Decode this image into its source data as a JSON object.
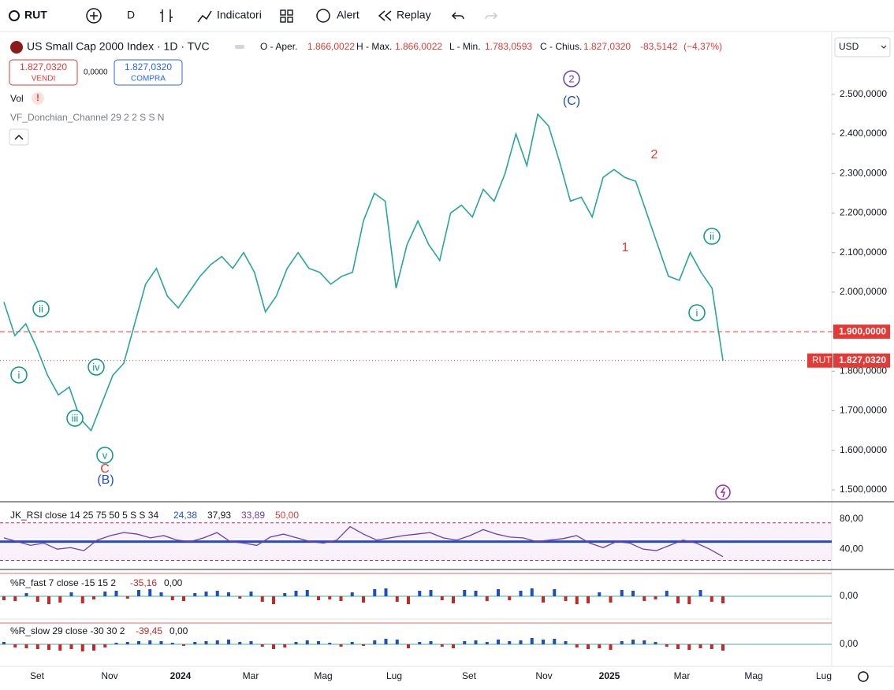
{
  "toolbar": {
    "symbol": "RUT",
    "interval": "D",
    "indicators": "Indicatori",
    "alert": "Alert",
    "replay": "Replay"
  },
  "header": {
    "title": "US Small Cap 2000 Index · 1D · TVC",
    "o_label": "O - Aper.",
    "o": "1.866,0022",
    "h_label": "H - Max.",
    "h": "1.866,0022",
    "l_label": "L - Min.",
    "l": "1.783,0593",
    "c_label": "C - Chius.",
    "c": "1.827,0320",
    "change": "-83,5142",
    "change_pct": "(−4,37%)",
    "sell_price": "1.827,0320",
    "sell": "VENDI",
    "spread": "0,0000",
    "buy_price": "1.827,0320",
    "buy": "COMPRA",
    "vol": "Vol",
    "donchian": "VF_Donchian_Channel 29 2 2 S S N",
    "currency": "USD"
  },
  "chart_data": {
    "type": "line",
    "color": "#26a69a",
    "values": [
      1975,
      1890,
      1920,
      1860,
      1790,
      1740,
      1760,
      1680,
      1650,
      1720,
      1790,
      1820,
      1920,
      2020,
      2060,
      1990,
      1960,
      2000,
      2040,
      2070,
      2090,
      2060,
      2100,
      2050,
      1950,
      1990,
      2060,
      2100,
      2060,
      2050,
      2020,
      2040,
      2050,
      2180,
      2250,
      2230,
      2010,
      2120,
      2180,
      2120,
      2080,
      2200,
      2220,
      2190,
      2260,
      2230,
      2300,
      2400,
      2320,
      2450,
      2420,
      2330,
      2230,
      2240,
      2190,
      2290,
      2310,
      2290,
      2280,
      2200,
      2120,
      2040,
      2030,
      2100,
      2050,
      2010,
      1827
    ],
    "ylim": [
      1472,
      2659
    ],
    "yticks": [
      {
        "value": 2500,
        "label": "2.500,0000"
      },
      {
        "value": 2400,
        "label": "2.400,0000"
      },
      {
        "value": 2300,
        "label": "2.300,0000"
      },
      {
        "value": 2200,
        "label": "2.200,0000"
      },
      {
        "value": 2100,
        "label": "2.100,0000"
      },
      {
        "value": 2000,
        "label": "2.000,0000"
      },
      {
        "value": 1900,
        "label": "1.900,0000"
      },
      {
        "value": 1800,
        "label": "1.800,0000"
      },
      {
        "value": 1700,
        "label": "1.700,0000"
      },
      {
        "value": 1600,
        "label": "1.600,0000"
      },
      {
        "value": 1500,
        "label": "1.500,0000"
      }
    ],
    "grid": false,
    "levels": [
      {
        "value": 1900,
        "label": "1.900,0000",
        "color": "#e53935"
      }
    ],
    "last": {
      "name": "RUT",
      "value": 1827.032,
      "label": "1.827,0320",
      "color": "#e53935"
    },
    "x_labels": [
      "Set",
      "Nov",
      "2024",
      "Mar",
      "Mag",
      "Lug",
      "Set",
      "Nov",
      "2025",
      "Mar",
      "Mag",
      "Lug"
    ],
    "waves": [
      {
        "label": "2",
        "color": "#6a3fb5",
        "circle": true
      },
      {
        "label": "(C)",
        "color": "#1e4fc2"
      },
      {
        "label": "ii",
        "color": "#089981",
        "circle": true
      },
      {
        "label": "i",
        "color": "#089981",
        "circle": true
      },
      {
        "label": "iii",
        "color": "#089981",
        "circle": true
      },
      {
        "label": "iv",
        "color": "#089981",
        "circle": true
      },
      {
        "label": "v",
        "color": "#089981",
        "circle": true
      },
      {
        "label": "C",
        "color": "#e53935"
      },
      {
        "label": "(B)",
        "color": "#1e4fc2"
      },
      {
        "label": "1",
        "color": "#e53935"
      },
      {
        "label": "2",
        "color": "#e53935"
      },
      {
        "label": "ii",
        "color": "#089981",
        "circle": true
      },
      {
        "label": "i",
        "color": "#089981",
        "circle": true
      }
    ]
  },
  "rsi": {
    "title": "JK_RSI close 14 25 75 50 5 S S 34",
    "readings": [
      "24,38",
      "37,93",
      "33,89",
      "50,00"
    ],
    "color": "#6a3fb5",
    "values": [
      55,
      50,
      45,
      48,
      40,
      42,
      38,
      52,
      58,
      62,
      60,
      55,
      58,
      52,
      50,
      55,
      62,
      50,
      48,
      45,
      56,
      60,
      55,
      50,
      48,
      52,
      70,
      60,
      52,
      55,
      58,
      60,
      62,
      55,
      52,
      58,
      66,
      60,
      56,
      55,
      50,
      52,
      54,
      58,
      48,
      42,
      50,
      48,
      40,
      38,
      45,
      52,
      48,
      40,
      30
    ],
    "levels": [
      75,
      50,
      25
    ],
    "ylim": [
      14,
      103
    ],
    "yticks": [
      {
        "value": 80,
        "label": "80,00"
      },
      {
        "value": 40,
        "label": "40,00"
      }
    ]
  },
  "fast": {
    "title": "%R_fast 7 close -15 15 2",
    "readings": [
      "-35,16",
      "0,00"
    ],
    "values": [
      -10,
      -12,
      8,
      -14,
      -20,
      -16,
      10,
      -18,
      -8,
      12,
      14,
      -6,
      16,
      18,
      10,
      -10,
      -12,
      8,
      12,
      14,
      10,
      -6,
      12,
      -14,
      -20,
      8,
      14,
      16,
      -10,
      -8,
      -12,
      10,
      -16,
      18,
      20,
      -14,
      -20,
      14,
      16,
      -10,
      -18,
      16,
      14,
      -12,
      18,
      -10,
      14,
      20,
      -16,
      18,
      -12,
      -20,
      -18,
      10,
      -16,
      16,
      14,
      -12,
      -8,
      14,
      -18,
      -20,
      16,
      -14,
      -18
    ],
    "ylim": [
      -56,
      68
    ],
    "yticks": [
      {
        "value": 0,
        "label": "0,00"
      }
    ]
  },
  "slow": {
    "title": "%R_slow 29 close -30 30 2",
    "readings": [
      "-39,45",
      "0,00"
    ],
    "values": [
      6,
      -8,
      -10,
      -12,
      -14,
      -16,
      -12,
      -18,
      -16,
      -8,
      4,
      6,
      8,
      10,
      8,
      4,
      -4,
      6,
      8,
      10,
      12,
      6,
      8,
      -6,
      -12,
      -8,
      6,
      10,
      8,
      4,
      -6,
      6,
      -4,
      10,
      14,
      12,
      -10,
      6,
      8,
      -6,
      -10,
      8,
      10,
      6,
      12,
      8,
      10,
      16,
      12,
      14,
      8,
      -8,
      -12,
      -10,
      -14,
      8,
      12,
      10,
      6,
      -6,
      -12,
      -14,
      -10,
      -12,
      -16
    ],
    "ylim": [
      -54,
      64
    ],
    "yticks": [
      {
        "value": 0,
        "label": "0,00"
      }
    ]
  }
}
